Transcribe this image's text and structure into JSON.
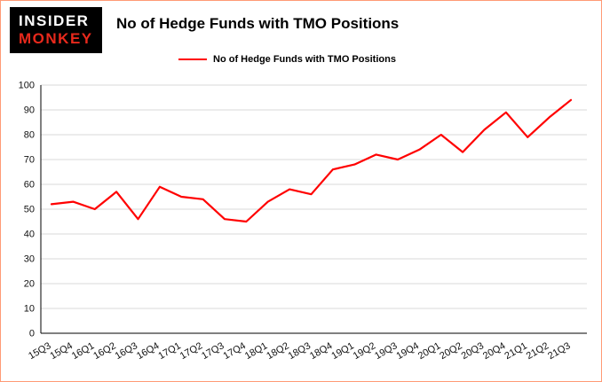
{
  "colors": {
    "border": "#ff9a76",
    "line": "#ff0000",
    "grid": "#d9d9d9",
    "axis": "#000000",
    "logo_bg": "#000000",
    "logo_line1": "#ffffff",
    "logo_line2": "#e8291c"
  },
  "logo": {
    "line1": "INSIDER",
    "line2": "MONKEY"
  },
  "header": {
    "title": "No of Hedge Funds with TMO Positions"
  },
  "legend": {
    "label": "No of Hedge Funds with TMO Positions"
  },
  "chart_data": {
    "type": "line",
    "title": "No of Hedge Funds with TMO Positions",
    "categories": [
      "15Q3",
      "15Q4",
      "16Q1",
      "16Q2",
      "16Q3",
      "16Q4",
      "17Q1",
      "17Q2",
      "17Q3",
      "17Q4",
      "18Q1",
      "18Q2",
      "18Q3",
      "18Q4",
      "19Q1",
      "19Q2",
      "19Q3",
      "19Q4",
      "20Q1",
      "20Q2",
      "20Q3",
      "20Q4",
      "21Q1",
      "21Q2",
      "21Q3"
    ],
    "series": [
      {
        "name": "No of Hedge Funds with TMO Positions",
        "color": "#ff0000",
        "values": [
          52,
          53,
          50,
          57,
          46,
          59,
          55,
          54,
          46,
          45,
          53,
          58,
          56,
          66,
          68,
          72,
          70,
          74,
          80,
          73,
          82,
          89,
          79,
          87,
          94
        ]
      }
    ],
    "xlabel": "",
    "ylabel": "",
    "ylim": [
      0,
      100
    ],
    "ytick_step": 10,
    "grid": "horizontal",
    "legend_position": "top-left"
  }
}
